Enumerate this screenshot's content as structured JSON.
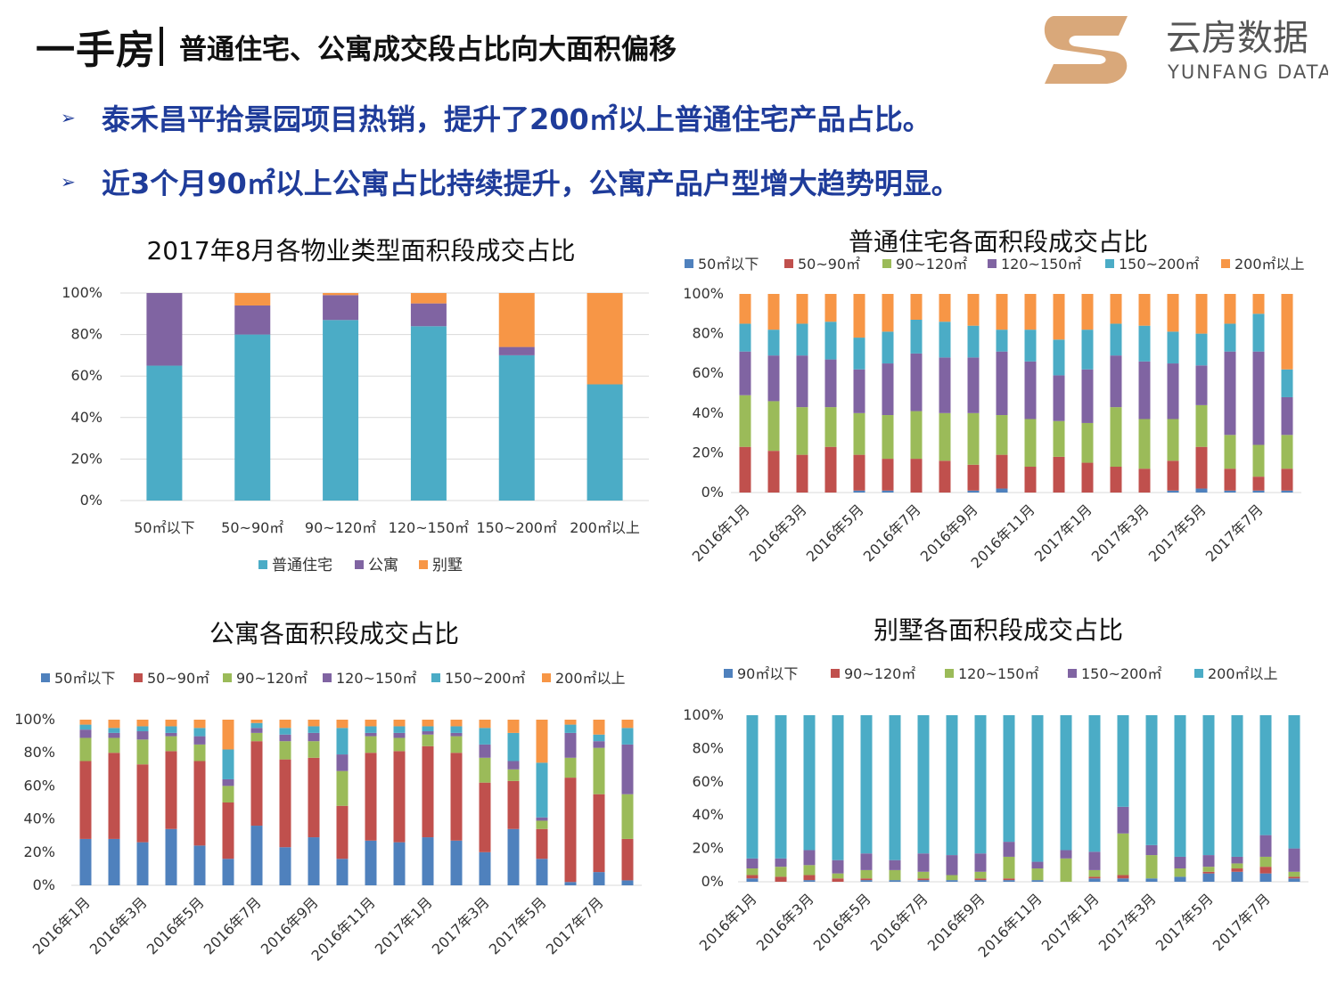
{
  "header": {
    "title": "一手房",
    "subtitle": "普通住宅、公寓成交段占比向大面积偏移"
  },
  "logo": {
    "name_cn": "云房数据",
    "name_en": "YUNFANG DATA",
    "accent": "#d9a87a"
  },
  "bullets": [
    "泰禾昌平拾景园项目热销，提升了200㎡以上普通住宅产品占比。",
    "近3个月90㎡以上公寓占比持续提升，公寓产品户型增大趋势明显。"
  ],
  "bullet_marker": "➢",
  "chart_data": [
    {
      "type": "bar",
      "stacked": true,
      "title": "2017年8月各物业类型面积段成交占比",
      "categories": [
        "50㎡以下",
        "50~90㎡",
        "90~120㎡",
        "120~150㎡",
        "150~200㎡",
        "200㎡以上"
      ],
      "series": [
        {
          "name": "普通住宅",
          "color": "#4bacc6",
          "values": [
            65,
            80,
            87,
            84,
            70,
            56
          ]
        },
        {
          "name": "公寓",
          "color": "#8064a2",
          "values": [
            35,
            14,
            12,
            11,
            4,
            0
          ]
        },
        {
          "name": "别墅",
          "color": "#f79646",
          "values": [
            0,
            6,
            1,
            5,
            26,
            44
          ]
        }
      ],
      "yticks": [
        "100%",
        "80%",
        "60%",
        "40%",
        "20%",
        "0%"
      ],
      "ylim": [
        0,
        100
      ],
      "legend": "bottom"
    },
    {
      "type": "bar",
      "stacked": true,
      "title": "普通住宅各面积段成交占比",
      "categories": [
        "2016年1月",
        "2016年2月",
        "2016年3月",
        "2016年4月",
        "2016年5月",
        "2016年6月",
        "2016年7月",
        "2016年8月",
        "2016年9月",
        "2016年10月",
        "2016年11月",
        "2016年12月",
        "2017年1月",
        "2017年2月",
        "2017年3月",
        "2017年4月",
        "2017年5月",
        "2017年6月",
        "2017年7月",
        "2017年8月"
      ],
      "xtick_labels": [
        "2016年1月",
        "2016年3月",
        "2016年5月",
        "2016年7月",
        "2016年9月",
        "2016年11月",
        "2017年1月",
        "2017年3月",
        "2017年5月",
        "2017年7月"
      ],
      "series": [
        {
          "name": "50㎡以下",
          "color": "#4f81bd",
          "values": [
            0,
            0,
            0,
            0,
            1,
            1,
            0,
            0,
            1,
            2,
            0,
            0,
            0,
            0,
            0,
            1,
            2,
            1,
            1,
            1
          ]
        },
        {
          "name": "50~90㎡",
          "color": "#c0504d",
          "values": [
            23,
            21,
            19,
            23,
            18,
            16,
            17,
            16,
            13,
            17,
            13,
            18,
            15,
            13,
            12,
            15,
            21,
            11,
            7,
            11
          ]
        },
        {
          "name": "90~120㎡",
          "color": "#9bbb59",
          "values": [
            26,
            25,
            24,
            20,
            21,
            22,
            24,
            24,
            26,
            20,
            24,
            18,
            20,
            30,
            25,
            21,
            21,
            17,
            16,
            17
          ]
        },
        {
          "name": "120~150㎡",
          "color": "#8064a2",
          "values": [
            22,
            23,
            26,
            24,
            22,
            26,
            29,
            28,
            28,
            32,
            29,
            23,
            27,
            26,
            29,
            28,
            20,
            42,
            47,
            19
          ]
        },
        {
          "name": "150~200㎡",
          "color": "#4bacc6",
          "values": [
            14,
            13,
            16,
            19,
            16,
            16,
            17,
            18,
            16,
            11,
            16,
            18,
            20,
            16,
            18,
            16,
            16,
            14,
            19,
            14
          ]
        },
        {
          "name": "200㎡以上",
          "color": "#f79646",
          "values": [
            15,
            18,
            15,
            14,
            22,
            19,
            13,
            14,
            16,
            18,
            18,
            23,
            18,
            15,
            16,
            19,
            20,
            15,
            10,
            38
          ]
        }
      ],
      "yticks": [
        "100%",
        "80%",
        "60%",
        "40%",
        "20%",
        "0%"
      ],
      "ylim": [
        0,
        100
      ],
      "legend": "top"
    },
    {
      "type": "bar",
      "stacked": true,
      "title": "公寓各面积段成交占比",
      "categories": [
        "2016年1月",
        "2016年2月",
        "2016年3月",
        "2016年4月",
        "2016年5月",
        "2016年6月",
        "2016年7月",
        "2016年8月",
        "2016年9月",
        "2016年10月",
        "2016年11月",
        "2016年12月",
        "2017年1月",
        "2017年2月",
        "2017年3月",
        "2017年4月",
        "2017年5月",
        "2017年6月",
        "2017年7月",
        "2017年8月"
      ],
      "xtick_labels": [
        "2016年1月",
        "2016年3月",
        "2016年5月",
        "2016年7月",
        "2016年9月",
        "2016年11月",
        "2017年1月",
        "2017年3月",
        "2017年5月",
        "2017年7月"
      ],
      "series": [
        {
          "name": "50㎡以下",
          "color": "#4f81bd",
          "values": [
            28,
            28,
            26,
            34,
            24,
            16,
            36,
            23,
            29,
            16,
            27,
            26,
            29,
            27,
            20,
            34,
            16,
            2,
            8,
            3
          ]
        },
        {
          "name": "50~90㎡",
          "color": "#c0504d",
          "values": [
            47,
            52,
            47,
            47,
            51,
            34,
            51,
            53,
            48,
            32,
            53,
            55,
            55,
            53,
            42,
            29,
            18,
            63,
            47,
            25
          ]
        },
        {
          "name": "90~120㎡",
          "color": "#9bbb59",
          "values": [
            14,
            9,
            15,
            9,
            10,
            10,
            5,
            11,
            10,
            21,
            10,
            8,
            7,
            10,
            15,
            7,
            5,
            12,
            28,
            27
          ]
        },
        {
          "name": "120~150㎡",
          "color": "#8064a2",
          "values": [
            5,
            3,
            5,
            2,
            5,
            4,
            3,
            4,
            5,
            10,
            2,
            3,
            2,
            2,
            8,
            5,
            2,
            15,
            4,
            30
          ]
        },
        {
          "name": "150~200㎡",
          "color": "#4bacc6",
          "values": [
            3,
            3,
            3,
            4,
            5,
            18,
            3,
            4,
            4,
            16,
            4,
            4,
            3,
            4,
            10,
            17,
            33,
            5,
            4,
            10
          ]
        },
        {
          "name": "200㎡以上",
          "color": "#f79646",
          "values": [
            3,
            5,
            4,
            4,
            5,
            18,
            2,
            5,
            4,
            5,
            4,
            4,
            4,
            4,
            5,
            8,
            26,
            3,
            9,
            5
          ]
        }
      ],
      "yticks": [
        "100%",
        "80%",
        "60%",
        "40%",
        "20%",
        "0%"
      ],
      "ylim": [
        0,
        100
      ],
      "legend": "top"
    },
    {
      "type": "bar",
      "stacked": true,
      "title": "别墅各面积段成交占比",
      "categories": [
        "2016年1月",
        "2016年2月",
        "2016年3月",
        "2016年4月",
        "2016年5月",
        "2016年6月",
        "2016年7月",
        "2016年8月",
        "2016年9月",
        "2016年10月",
        "2016年11月",
        "2016年12月",
        "2017年1月",
        "2017年2月",
        "2017年3月",
        "2017年4月",
        "2017年5月",
        "2017年6月",
        "2017年7月",
        "2017年8月"
      ],
      "xtick_labels": [
        "2016年1月",
        "2016年3月",
        "2016年5月",
        "2016年7月",
        "2016年9月",
        "2016年11月",
        "2017年1月",
        "2017年3月",
        "2017年5月",
        "2017年7月"
      ],
      "series": [
        {
          "name": "90㎡以下",
          "color": "#4f81bd",
          "values": [
            2,
            0,
            1,
            0,
            1,
            1,
            1,
            1,
            1,
            1,
            1,
            0,
            2,
            2,
            2,
            3,
            5,
            6,
            5,
            2
          ]
        },
        {
          "name": "90~120㎡",
          "color": "#c0504d",
          "values": [
            2,
            3,
            3,
            2,
            1,
            0,
            1,
            0,
            1,
            1,
            0,
            0,
            1,
            2,
            0,
            0,
            1,
            2,
            4,
            1
          ]
        },
        {
          "name": "120~150㎡",
          "color": "#9bbb59",
          "values": [
            4,
            6,
            6,
            3,
            5,
            6,
            4,
            3,
            4,
            13,
            7,
            14,
            4,
            25,
            14,
            5,
            3,
            3,
            6,
            3
          ]
        },
        {
          "name": "150~200㎡",
          "color": "#8064a2",
          "values": [
            6,
            5,
            9,
            8,
            10,
            6,
            11,
            12,
            11,
            9,
            4,
            5,
            11,
            16,
            6,
            7,
            7,
            4,
            13,
            14
          ]
        },
        {
          "name": "200㎡以上",
          "color": "#4bacc6",
          "values": [
            86,
            86,
            81,
            87,
            83,
            87,
            83,
            84,
            83,
            76,
            88,
            81,
            82,
            55,
            78,
            85,
            84,
            85,
            72,
            80
          ]
        }
      ],
      "yticks": [
        "100%",
        "80%",
        "60%",
        "40%",
        "20%",
        "0%"
      ],
      "ylim": [
        0,
        100
      ],
      "legend": "top"
    }
  ]
}
